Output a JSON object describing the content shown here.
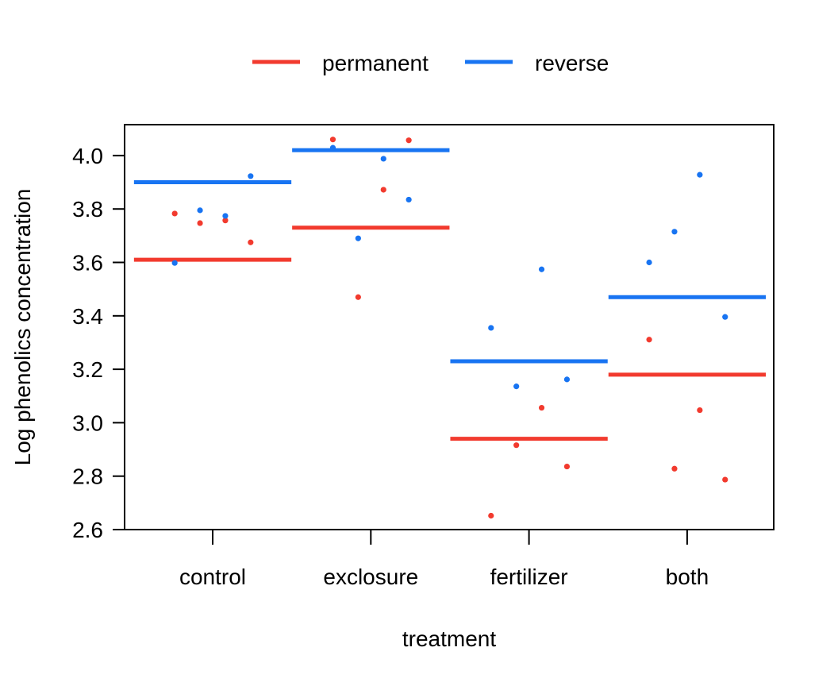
{
  "chart_data": {
    "type": "scatter",
    "xlabel": "treatment",
    "ylabel": "Log phenolics concentration",
    "categories": [
      "control",
      "exclosure",
      "fertilizer",
      "both"
    ],
    "ylim": [
      2.6,
      4.12
    ],
    "yticks": [
      2.6,
      2.8,
      3.0,
      3.2,
      3.4,
      3.6,
      3.8,
      4.0
    ],
    "ytick_labels": [
      "2.6",
      "2.8",
      "3.0",
      "3.2",
      "3.4",
      "3.6",
      "3.8",
      "4.0"
    ],
    "grid": false,
    "legend_position": "top-center",
    "series": [
      {
        "name": "permanent",
        "color": "#f23a2e",
        "means": [
          3.61,
          3.73,
          2.94,
          3.18
        ],
        "points": [
          {
            "category": "control",
            "offset": -0.24,
            "y": 3.783
          },
          {
            "category": "control",
            "offset": -0.08,
            "y": 3.747
          },
          {
            "category": "control",
            "offset": 0.08,
            "y": 3.757
          },
          {
            "category": "control",
            "offset": 0.24,
            "y": 3.675
          },
          {
            "category": "exclosure",
            "offset": -0.24,
            "y": 4.06
          },
          {
            "category": "exclosure",
            "offset": -0.08,
            "y": 3.47
          },
          {
            "category": "exclosure",
            "offset": 0.08,
            "y": 3.872
          },
          {
            "category": "exclosure",
            "offset": 0.24,
            "y": 4.057
          },
          {
            "category": "fertilizer",
            "offset": -0.24,
            "y": 2.652
          },
          {
            "category": "fertilizer",
            "offset": -0.08,
            "y": 2.916
          },
          {
            "category": "fertilizer",
            "offset": 0.08,
            "y": 3.056
          },
          {
            "category": "fertilizer",
            "offset": 0.24,
            "y": 2.836
          },
          {
            "category": "both",
            "offset": -0.24,
            "y": 3.311
          },
          {
            "category": "both",
            "offset": -0.08,
            "y": 2.828
          },
          {
            "category": "both",
            "offset": 0.08,
            "y": 3.047
          },
          {
            "category": "both",
            "offset": 0.24,
            "y": 2.787
          }
        ]
      },
      {
        "name": "reverse",
        "color": "#1874f2",
        "means": [
          3.9,
          4.02,
          3.23,
          3.47
        ],
        "points": [
          {
            "category": "control",
            "offset": -0.24,
            "y": 3.598
          },
          {
            "category": "control",
            "offset": -0.08,
            "y": 3.795
          },
          {
            "category": "control",
            "offset": 0.08,
            "y": 3.774
          },
          {
            "category": "control",
            "offset": 0.24,
            "y": 3.923
          },
          {
            "category": "exclosure",
            "offset": -0.24,
            "y": 4.029
          },
          {
            "category": "exclosure",
            "offset": -0.08,
            "y": 3.69
          },
          {
            "category": "exclosure",
            "offset": 0.08,
            "y": 3.988
          },
          {
            "category": "exclosure",
            "offset": 0.24,
            "y": 3.835
          },
          {
            "category": "fertilizer",
            "offset": -0.24,
            "y": 3.355
          },
          {
            "category": "fertilizer",
            "offset": -0.08,
            "y": 3.136
          },
          {
            "category": "fertilizer",
            "offset": 0.08,
            "y": 3.574
          },
          {
            "category": "fertilizer",
            "offset": 0.24,
            "y": 3.162
          },
          {
            "category": "both",
            "offset": -0.24,
            "y": 3.6
          },
          {
            "category": "both",
            "offset": -0.08,
            "y": 3.715
          },
          {
            "category": "both",
            "offset": 0.08,
            "y": 3.928
          },
          {
            "category": "both",
            "offset": 0.24,
            "y": 3.396
          }
        ]
      }
    ]
  }
}
